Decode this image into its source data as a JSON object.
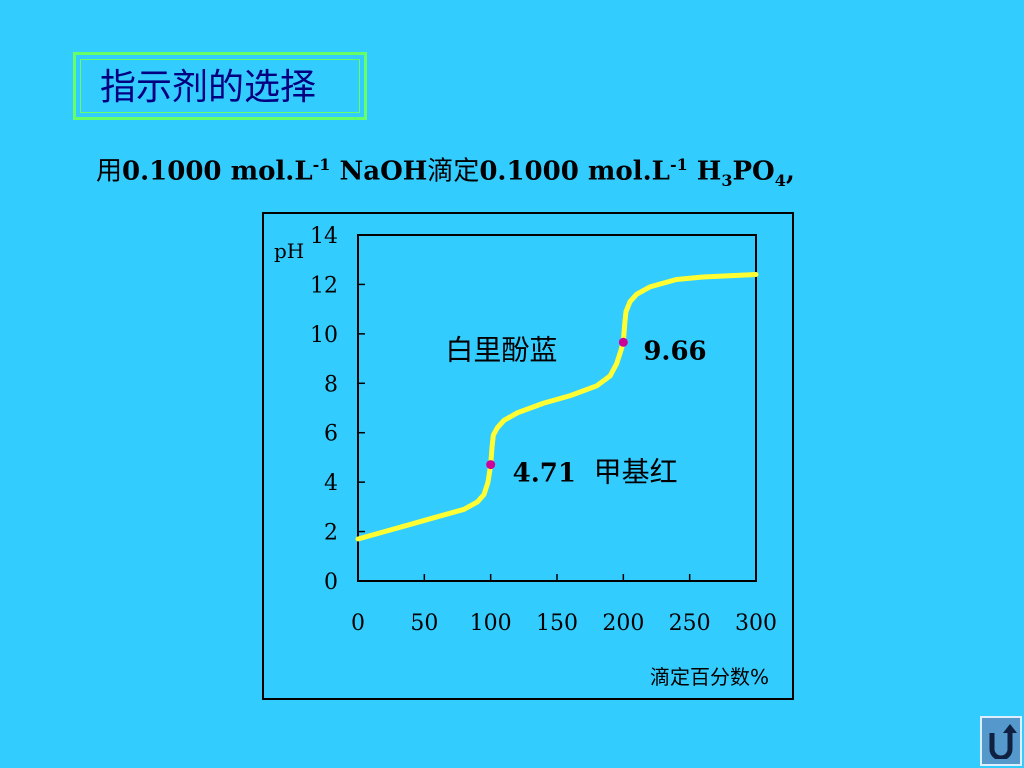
{
  "title": "指示剂的选择",
  "subtitle": {
    "prefix": "用",
    "c1": "0.1000 mol.L",
    "exp1": "-1",
    "base": " NaOH",
    "mid": "滴定",
    "c2": "0.1000 mol.L",
    "exp2": "-1",
    "acid_a": " H",
    "sub_a": "3",
    "acid_b": "PO",
    "sub_b": "4",
    "suffix": ","
  },
  "colors": {
    "background": "#33CCFF",
    "curve": "#FFFF33",
    "marker": "#CC0099",
    "title_text": "#000080",
    "title_border": "#66FF66"
  },
  "chart_data": {
    "type": "line",
    "ylabel": "pH",
    "xlabel": "滴定百分数%",
    "xlim": [
      0,
      300
    ],
    "ylim": [
      0,
      14
    ],
    "x_ticks": [
      0,
      50,
      100,
      150,
      200,
      250,
      300
    ],
    "y_ticks": [
      0,
      2,
      4,
      6,
      8,
      10,
      12,
      14
    ],
    "grid": false,
    "series": [
      {
        "x": [
          0,
          20,
          40,
          60,
          80,
          90,
          95,
          98,
          100,
          101,
          102,
          105,
          110,
          120,
          140,
          160,
          180,
          190,
          195,
          198,
          200,
          201,
          202,
          205,
          210,
          220,
          240,
          260,
          280,
          300
        ],
        "y": [
          1.7,
          2.0,
          2.3,
          2.6,
          2.9,
          3.2,
          3.5,
          4.0,
          4.71,
          5.4,
          5.9,
          6.2,
          6.5,
          6.8,
          7.2,
          7.5,
          7.9,
          8.3,
          8.8,
          9.3,
          9.66,
          10.4,
          10.9,
          11.3,
          11.6,
          11.9,
          12.2,
          12.3,
          12.35,
          12.4
        ]
      }
    ],
    "points": [
      {
        "x": 100,
        "y": 4.71,
        "value": "4.71",
        "indicator": "甲基红"
      },
      {
        "x": 200,
        "y": 9.66,
        "value": "9.66",
        "indicator": "白里酚蓝"
      }
    ]
  }
}
